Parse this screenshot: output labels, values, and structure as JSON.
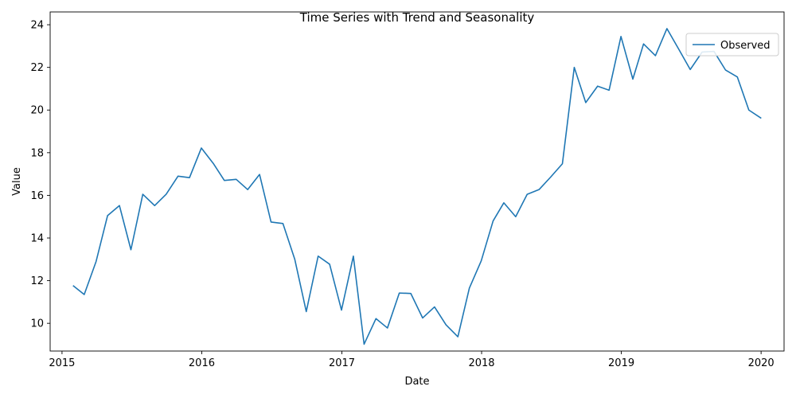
{
  "chart_data": {
    "type": "line",
    "title": "Time Series with Trend and Seasonality",
    "xlabel": "Date",
    "ylabel": "Value",
    "xlim": [
      "2014-12-01",
      "2020-03-01"
    ],
    "ylim": [
      8.7,
      24.6
    ],
    "x_ticks": [
      "2015",
      "2016",
      "2017",
      "2018",
      "2019",
      "2020"
    ],
    "y_ticks": [
      10,
      12,
      14,
      16,
      18,
      20,
      22,
      24
    ],
    "grid": false,
    "legend": {
      "position": "top-right",
      "entries": [
        "Observed"
      ]
    },
    "series": [
      {
        "name": "Observed",
        "color": "#1f77b4",
        "x": [
          "2015-01-31",
          "2015-02-28",
          "2015-03-31",
          "2015-04-30",
          "2015-05-31",
          "2015-06-30",
          "2015-07-31",
          "2015-08-31",
          "2015-09-30",
          "2015-10-31",
          "2015-11-30",
          "2015-12-31",
          "2016-01-31",
          "2016-02-29",
          "2016-03-31",
          "2016-04-30",
          "2016-05-31",
          "2016-06-30",
          "2016-07-31",
          "2016-08-31",
          "2016-09-30",
          "2016-10-31",
          "2016-11-30",
          "2016-12-31",
          "2017-01-31",
          "2017-02-28",
          "2017-03-31",
          "2017-04-30",
          "2017-05-31",
          "2017-06-30",
          "2017-07-31",
          "2017-08-31",
          "2017-09-30",
          "2017-10-31",
          "2017-11-30",
          "2017-12-31",
          "2018-01-31",
          "2018-02-28",
          "2018-03-31",
          "2018-04-30",
          "2018-05-31",
          "2018-06-30",
          "2018-07-31",
          "2018-08-31",
          "2018-09-30",
          "2018-10-31",
          "2018-11-30",
          "2018-12-31",
          "2019-01-31",
          "2019-02-28",
          "2019-03-31",
          "2019-04-30",
          "2019-05-31",
          "2019-06-30",
          "2019-07-31",
          "2019-08-31",
          "2019-09-30",
          "2019-10-31",
          "2019-11-30",
          "2019-12-31"
        ],
        "values": [
          11.75,
          11.35,
          12.9,
          15.05,
          15.52,
          13.45,
          16.05,
          15.52,
          16.05,
          16.9,
          16.83,
          18.22,
          17.5,
          16.7,
          16.75,
          16.27,
          16.98,
          14.75,
          14.68,
          13.0,
          10.55,
          13.15,
          12.77,
          10.62,
          13.15,
          9.02,
          10.22,
          9.78,
          11.42,
          11.4,
          10.25,
          10.77,
          9.93,
          9.37,
          11.65,
          12.93,
          14.8,
          15.65,
          15.0,
          16.05,
          16.27,
          16.85,
          17.48,
          22.0,
          20.35,
          21.12,
          20.93,
          23.45,
          21.45,
          23.1,
          22.55,
          23.82,
          22.85,
          21.9,
          22.72,
          22.75,
          21.88,
          21.55,
          20.0,
          19.63
        ]
      }
    ]
  }
}
